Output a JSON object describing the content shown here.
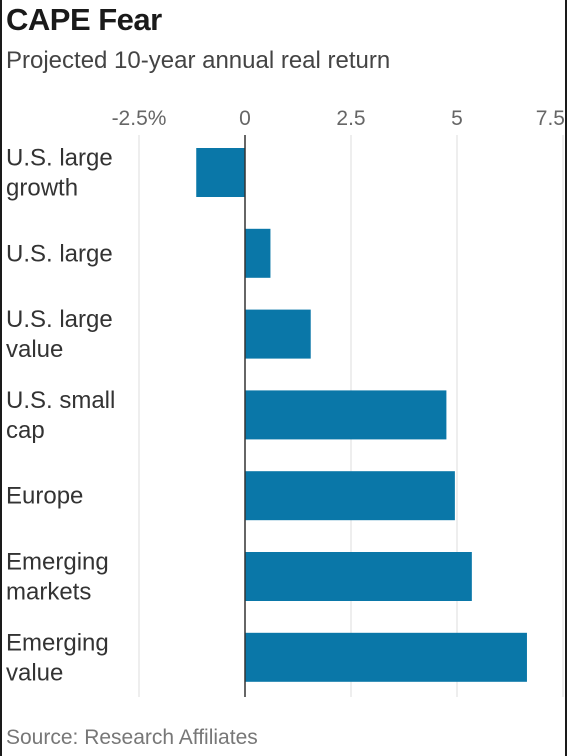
{
  "title": "CAPE Fear",
  "subtitle": "Projected 10-year annual real return",
  "source": "Source: Research Affiliates",
  "colors": {
    "bar": "#0a77a8",
    "grid": "#dddddd",
    "zero_line": "#333333"
  },
  "chart_data": {
    "type": "bar",
    "orientation": "horizontal",
    "title": "CAPE Fear",
    "subtitle": "Projected 10-year annual real return",
    "categories": [
      [
        "U.S. large",
        "growth"
      ],
      [
        "U.S. large"
      ],
      [
        "U.S. large",
        "value"
      ],
      [
        "U.S. small",
        "cap"
      ],
      [
        "Europe"
      ],
      [
        "Emerging",
        "markets"
      ],
      [
        "Emerging",
        "value"
      ]
    ],
    "values": [
      -1.15,
      0.6,
      1.55,
      4.75,
      4.95,
      5.35,
      6.65
    ],
    "xlim": [
      -2.5,
      7.5
    ],
    "xticks": [
      -2.5,
      0,
      2.5,
      5,
      7.5
    ],
    "xtick_labels": [
      "-2.5%",
      "0",
      "2.5",
      "5",
      "7.5"
    ],
    "grid": true,
    "legend": "none"
  }
}
